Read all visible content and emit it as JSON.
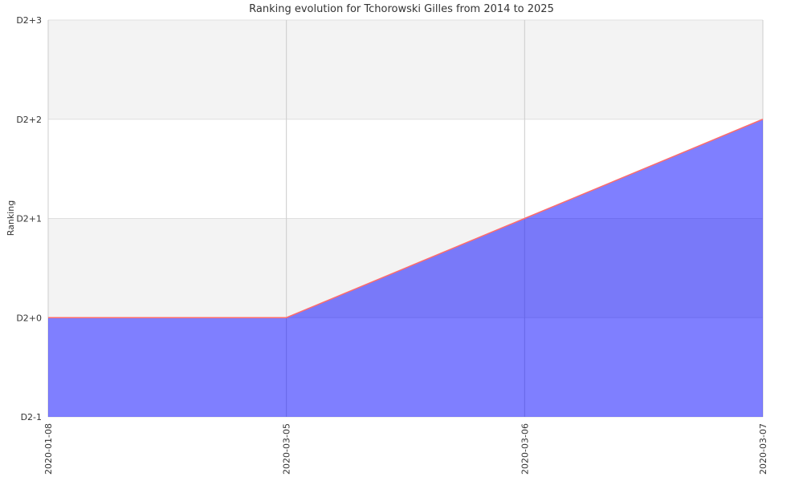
{
  "chart_data": {
    "type": "area",
    "title": "Ranking evolution for Tchorowski Gilles from 2014 to 2025",
    "xlabel": "",
    "ylabel": "Ranking",
    "x": [
      "2020-01-08",
      "2020-03-05",
      "2020-03-06",
      "2020-03-07"
    ],
    "y_tick_labels": [
      "D2-1",
      "D2+0",
      "D2+1",
      "D2+2",
      "D2+3"
    ],
    "ylim": [
      "D2-1",
      "D2+3"
    ],
    "series": [
      {
        "values": [
          "D2+0",
          "D2+0",
          "D2+1",
          "D2+2"
        ]
      }
    ],
    "grid": true,
    "legend": "none",
    "colors": {
      "fill": "#0000ff",
      "line": "#ff6b6b",
      "band": "#f3f3f3",
      "grid": "#cccccc"
    }
  }
}
